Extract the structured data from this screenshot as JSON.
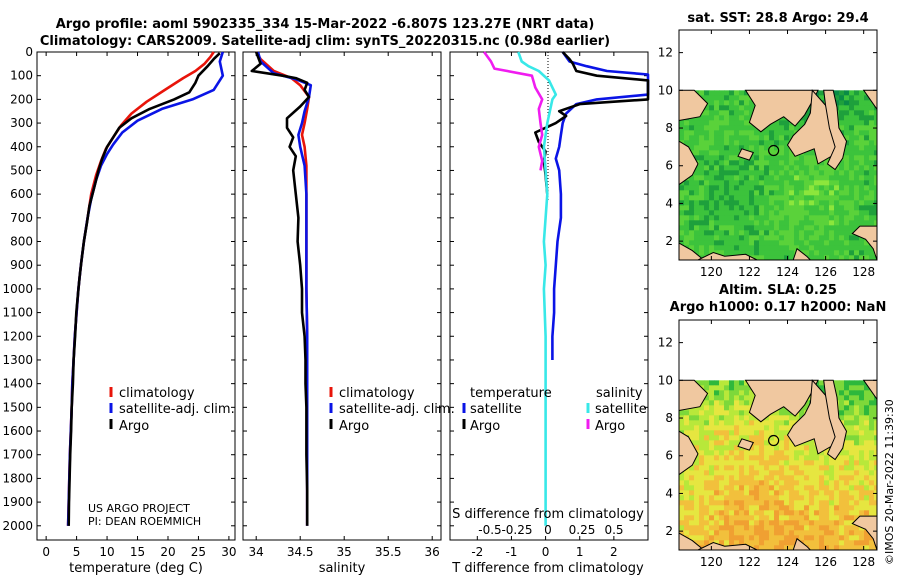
{
  "header": {
    "line1": "Argo profile: aoml 5902335_334 15-Mar-2022 -6.807S 123.27E (NRT data)",
    "line2": "Climatology: CARS2009. Satellite-adj clim: synTS_20220315.nc (0.98d earlier)"
  },
  "credit": {
    "project": "US ARGO PROJECT",
    "pi": "PI: DEAN ROEMMICH",
    "imos": "©IMOS 20-Mar-2022 11:39:30"
  },
  "colors": {
    "climatology": "#e8140a",
    "satellite": "#0a14e6",
    "argo": "#000000",
    "sat_salinity": "#38e8e8",
    "argo_salinity": "#f01cf0",
    "land": "#f0c8a0",
    "blank": "#ffffff"
  },
  "chart_data": [
    {
      "type": "line",
      "id": "temperature",
      "xlabel": "temperature (deg C)",
      "ylabel": "",
      "xlim": [
        -1.5,
        31
      ],
      "ylim": [
        2060,
        0
      ],
      "xticks": [
        0,
        5,
        10,
        15,
        20,
        25,
        30
      ],
      "yticks": [
        0,
        100,
        200,
        300,
        400,
        500,
        600,
        700,
        800,
        900,
        1000,
        1100,
        1200,
        1300,
        1400,
        1500,
        1600,
        1700,
        1800,
        1900,
        2000
      ],
      "legend": [
        "climatology",
        "satellite-adj. clim.",
        "Argo"
      ],
      "series": [
        {
          "name": "climatology",
          "color_key": "climatology",
          "points": [
            [
              27.5,
              0
            ],
            [
              27,
              20
            ],
            [
              26,
              50
            ],
            [
              24.5,
              80
            ],
            [
              22.5,
              110
            ],
            [
              19.5,
              160
            ],
            [
              16.5,
              210
            ],
            [
              14,
              260
            ],
            [
              12.3,
              310
            ],
            [
              11,
              360
            ],
            [
              9.8,
              410
            ],
            [
              9,
              460
            ],
            [
              8.2,
              520
            ],
            [
              7.4,
              600
            ],
            [
              6.8,
              700
            ],
            [
              6.2,
              800
            ],
            [
              5.7,
              900
            ],
            [
              5.3,
              1000
            ],
            [
              5,
              1100
            ],
            [
              4.7,
              1200
            ],
            [
              4.5,
              1300
            ],
            [
              4.3,
              1400
            ],
            [
              4.2,
              1500
            ],
            [
              4.05,
              1600
            ],
            [
              3.9,
              1700
            ],
            [
              3.8,
              1800
            ],
            [
              3.7,
              1900
            ],
            [
              3.6,
              2000
            ]
          ]
        },
        {
          "name": "satellite-adj. clim.",
          "color_key": "satellite",
          "points": [
            [
              29,
              0
            ],
            [
              28.5,
              40
            ],
            [
              29,
              100
            ],
            [
              27.5,
              160
            ],
            [
              24,
              200
            ],
            [
              19,
              240
            ],
            [
              15,
              290
            ],
            [
              12.5,
              340
            ],
            [
              11,
              390
            ],
            [
              10,
              430
            ],
            [
              9,
              480
            ],
            [
              8.2,
              540
            ],
            [
              7.4,
              620
            ],
            [
              6.8,
              700
            ],
            [
              6.2,
              800
            ],
            [
              5.7,
              900
            ],
            [
              5.3,
              1000
            ],
            [
              5,
              1100
            ],
            [
              4.7,
              1200
            ],
            [
              4.5,
              1300
            ],
            [
              4.3,
              1400
            ],
            [
              4.2,
              1500
            ],
            [
              4.05,
              1600
            ],
            [
              3.9,
              1700
            ],
            [
              3.8,
              1800
            ],
            [
              3.7,
              1900
            ],
            [
              3.6,
              2000
            ]
          ]
        },
        {
          "name": "Argo",
          "color_key": "argo",
          "points": [
            [
              28.5,
              5
            ],
            [
              27.5,
              30
            ],
            [
              26.5,
              60
            ],
            [
              25,
              100
            ],
            [
              24.5,
              130
            ],
            [
              23.5,
              170
            ],
            [
              21,
              200
            ],
            [
              17,
              240
            ],
            [
              14,
              280
            ],
            [
              12,
              320
            ],
            [
              11,
              360
            ],
            [
              10,
              400
            ],
            [
              9.2,
              450
            ],
            [
              8.6,
              500
            ],
            [
              7.8,
              580
            ],
            [
              7.1,
              650
            ],
            [
              6.7,
              720
            ],
            [
              6.2,
              800
            ],
            [
              5.8,
              880
            ],
            [
              5.5,
              950
            ],
            [
              5.2,
              1030
            ],
            [
              4.95,
              1100
            ],
            [
              4.75,
              1200
            ],
            [
              4.5,
              1300
            ],
            [
              4.4,
              1400
            ],
            [
              4.2,
              1500
            ],
            [
              4.1,
              1600
            ],
            [
              3.95,
              1700
            ],
            [
              3.85,
              1800
            ],
            [
              3.75,
              1900
            ],
            [
              3.7,
              2000
            ]
          ]
        }
      ]
    },
    {
      "type": "line",
      "id": "salinity",
      "xlabel": "salinity",
      "ylabel": "",
      "xlim": [
        33.85,
        36.1
      ],
      "ylim": [
        2060,
        0
      ],
      "xticks": [
        34,
        34.5,
        35,
        35.5,
        36
      ],
      "legend": [
        "climatology",
        "satellite-adj. clim.",
        "Argo"
      ],
      "series": [
        {
          "name": "climatology",
          "color_key": "climatology",
          "points": [
            [
              34.0,
              0
            ],
            [
              34.05,
              30
            ],
            [
              34.2,
              80
            ],
            [
              34.4,
              110
            ],
            [
              34.5,
              140
            ],
            [
              34.6,
              190
            ],
            [
              34.58,
              240
            ],
            [
              34.55,
              300
            ],
            [
              34.52,
              350
            ],
            [
              34.55,
              400
            ],
            [
              34.57,
              480
            ],
            [
              34.57,
              600
            ],
            [
              34.57,
              800
            ],
            [
              34.57,
              1000
            ],
            [
              34.58,
              1200
            ],
            [
              34.58,
              1500
            ],
            [
              34.58,
              1800
            ],
            [
              34.58,
              2000
            ]
          ]
        },
        {
          "name": "satellite-adj. clim.",
          "color_key": "satellite",
          "points": [
            [
              34.02,
              0
            ],
            [
              34.05,
              40
            ],
            [
              34.2,
              90
            ],
            [
              34.45,
              115
            ],
            [
              34.62,
              140
            ],
            [
              34.6,
              190
            ],
            [
              34.55,
              250
            ],
            [
              34.52,
              300
            ],
            [
              34.48,
              350
            ],
            [
              34.5,
              400
            ],
            [
              34.55,
              480
            ],
            [
              34.57,
              600
            ],
            [
              34.57,
              800
            ],
            [
              34.57,
              1000
            ],
            [
              34.58,
              1200
            ],
            [
              34.58,
              1500
            ],
            [
              34.58,
              1800
            ],
            [
              34.58,
              2000
            ]
          ]
        },
        {
          "name": "Argo",
          "color_key": "argo",
          "points": [
            [
              34.0,
              0
            ],
            [
              34.05,
              50
            ],
            [
              33.95,
              80
            ],
            [
              34.3,
              100
            ],
            [
              34.45,
              110
            ],
            [
              34.58,
              130
            ],
            [
              34.55,
              160
            ],
            [
              34.6,
              190
            ],
            [
              34.5,
              230
            ],
            [
              34.35,
              280
            ],
            [
              34.35,
              320
            ],
            [
              34.42,
              360
            ],
            [
              34.38,
              400
            ],
            [
              34.45,
              440
            ],
            [
              34.42,
              500
            ],
            [
              34.45,
              600
            ],
            [
              34.48,
              700
            ],
            [
              34.47,
              800
            ],
            [
              34.5,
              900
            ],
            [
              34.52,
              1000
            ],
            [
              34.52,
              1100
            ],
            [
              34.55,
              1200
            ],
            [
              34.56,
              1300
            ],
            [
              34.56,
              1400
            ],
            [
              34.57,
              1500
            ],
            [
              34.57,
              1700
            ],
            [
              34.58,
              1850
            ],
            [
              34.58,
              2000
            ]
          ]
        }
      ]
    },
    {
      "type": "line",
      "id": "differences",
      "xlabel": "T difference from climatology",
      "xlabel2": "S difference from climatology",
      "xlim": [
        -2.8,
        3
      ],
      "ylim": [
        2060,
        0
      ],
      "xticks": [
        -2,
        -1,
        0,
        1,
        2
      ],
      "sticks": [
        "-0.5",
        "-0.25",
        "0",
        "0.25",
        "0.5"
      ],
      "legend_groups": {
        "temperature": {
          "title": "temperature",
          "items": [
            "satellite",
            "Argo"
          ]
        },
        "salinity": {
          "title": "salinity",
          "items": [
            "satellite",
            "Argo"
          ]
        }
      },
      "series": [
        {
          "name": "T satellite",
          "color_key": "satellite",
          "points": [
            [
              0.5,
              0
            ],
            [
              0.7,
              40
            ],
            [
              1.2,
              60
            ],
            [
              1.8,
              80
            ],
            [
              3,
              95
            ],
            [
              3,
              180
            ],
            [
              1.5,
              200
            ],
            [
              0.9,
              220
            ],
            [
              0.6,
              260
            ],
            [
              0.5,
              300
            ],
            [
              0.45,
              350
            ],
            [
              0.4,
              400
            ],
            [
              0.3,
              450
            ],
            [
              0.4,
              500
            ],
            [
              0.45,
              600
            ],
            [
              0.45,
              700
            ],
            [
              0.35,
              800
            ],
            [
              0.3,
              900
            ],
            [
              0.25,
              1000
            ],
            [
              0.25,
              1100
            ],
            [
              0.2,
              1200
            ],
            [
              0.2,
              1300
            ]
          ]
        },
        {
          "name": "T Argo",
          "color_key": "argo",
          "points": [
            [
              0.5,
              0
            ],
            [
              0.7,
              30
            ],
            [
              0.8,
              50
            ],
            [
              0.9,
              80
            ],
            [
              1.5,
              100
            ],
            [
              3,
              120
            ],
            [
              3,
              200
            ],
            [
              2,
              210
            ],
            [
              1,
              220
            ],
            [
              0.4,
              250
            ],
            [
              0.6,
              270
            ],
            [
              0.3,
              300
            ],
            [
              -0.3,
              340
            ],
            [
              -0.2,
              380
            ],
            [
              0.0,
              420
            ],
            [
              -0.05,
              460
            ],
            [
              0.0,
              520
            ],
            [
              0.05,
              600
            ]
          ]
        },
        {
          "name": "S satellite",
          "color_key": "sat_salinity",
          "points": [
            [
              -0.8,
              0
            ],
            [
              -0.7,
              40
            ],
            [
              -0.5,
              60
            ],
            [
              -0.2,
              80
            ],
            [
              0.1,
              120
            ],
            [
              0.3,
              180
            ],
            [
              0.2,
              200
            ],
            [
              0.05,
              300
            ],
            [
              -0.05,
              400
            ],
            [
              0.0,
              500
            ],
            [
              0.05,
              600
            ],
            [
              0.0,
              700
            ],
            [
              -0.05,
              800
            ],
            [
              0.0,
              900
            ],
            [
              -0.05,
              1000
            ],
            [
              0.0,
              1200
            ],
            [
              0.0,
              1400
            ],
            [
              0.0,
              1600
            ],
            [
              0.0,
              1800
            ],
            [
              0.0,
              2000
            ]
          ]
        },
        {
          "name": "S Argo",
          "color_key": "argo_salinity",
          "points": [
            [
              -1.8,
              0
            ],
            [
              -1.6,
              40
            ],
            [
              -1.5,
              70
            ],
            [
              -0.4,
              100
            ],
            [
              -0.3,
              150
            ],
            [
              -0.1,
              200
            ],
            [
              -0.2,
              240
            ],
            [
              -0.15,
              300
            ],
            [
              -0.1,
              350
            ],
            [
              -0.2,
              400
            ],
            [
              -0.1,
              460
            ],
            [
              -0.15,
              500
            ]
          ]
        }
      ]
    },
    {
      "type": "heatmap",
      "id": "sst_map",
      "title": "sat. SST: 28.8 Argo: 29.4",
      "xlim": [
        118.3,
        128.7
      ],
      "ylim": [
        1,
        13.2
      ],
      "xticks": [
        120,
        122,
        124,
        126,
        128
      ],
      "yticks": [
        2,
        4,
        6,
        8,
        10,
        12
      ],
      "palette": [
        "#0a8c46",
        "#1ea03c",
        "#3cc33c",
        "#5ad23a",
        "#8ce63c"
      ],
      "marker": {
        "lon": 123.27,
        "lat": 6.807
      }
    },
    {
      "type": "heatmap",
      "id": "sla_map",
      "title": "Altim. SLA: 0.25",
      "title2": "Argo h1000: 0.17 h2000: NaN",
      "xlim": [
        118.3,
        128.7
      ],
      "ylim": [
        1,
        13.2
      ],
      "xticks": [
        120,
        122,
        124,
        126,
        128
      ],
      "yticks": [
        2,
        4,
        6,
        8,
        10,
        12
      ],
      "palette": [
        "#2eb83c",
        "#7dd83a",
        "#b8e83a",
        "#e6e640",
        "#f2c03c",
        "#f0a032"
      ],
      "marker": {
        "lon": 123.27,
        "lat": 6.807
      }
    }
  ]
}
